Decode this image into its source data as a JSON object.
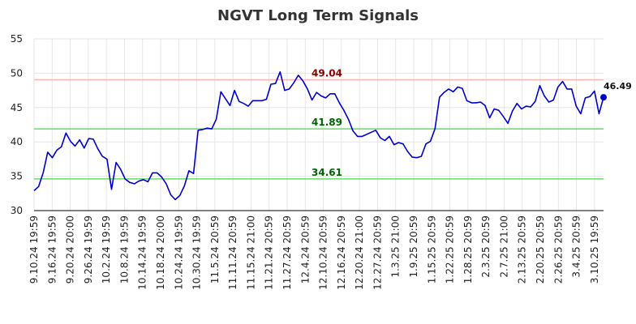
{
  "chart_data": {
    "type": "line",
    "title": "NGVT Long Term Signals",
    "xlabel": "",
    "ylabel": "",
    "ylim": [
      30,
      55
    ],
    "yticks": [
      30,
      35,
      40,
      45,
      50,
      55
    ],
    "grid": true,
    "x_tick_labels": [
      "9.10.24 19:59",
      "9.16.24 19:59",
      "9.20.24 20:00",
      "9.26.24 19:59",
      "10.2.24 19:59",
      "10.8.24 19:59",
      "10.14.24 19:59",
      "10.18.24 20:00",
      "10.24.24 19:59",
      "10.30.24 19:59",
      "11.5.24 20:59",
      "11.11.24 20:59",
      "11.15.24 21:00",
      "11.21.24 20:59",
      "11.27.24 20:59",
      "12.4.24 20:59",
      "12.10.24 20:59",
      "12.16.24 20:59",
      "12.20.24 21:00",
      "12.27.24 20:59",
      "1.3.25 21:00",
      "1.9.25 20:59",
      "1.15.25 20:59",
      "1.22.25 20:59",
      "1.28.25 20:59",
      "2.3.25 20:59",
      "2.7.25 21:00",
      "2.13.25 20:59",
      "2.20.25 20:59",
      "2.26.25 20:59",
      "3.4.25 20:59",
      "3.10.25 19:59"
    ],
    "series": [
      {
        "color": "#0000cc",
        "values": [
          32.9,
          33.5,
          35.5,
          38.5,
          37.7,
          38.8,
          39.3,
          41.3,
          40.1,
          39.4,
          40.3,
          39.1,
          40.5,
          40.4,
          39.0,
          37.9,
          37.5,
          33.1,
          37.0,
          36.0,
          34.6,
          34.1,
          33.9,
          34.3,
          34.5,
          34.2,
          35.5,
          35.5,
          34.9,
          33.9,
          32.3,
          31.6,
          32.2,
          33.6,
          35.8,
          35.4,
          41.7,
          41.8,
          42.0,
          41.9,
          43.3,
          47.3,
          46.3,
          45.3,
          47.5,
          45.9,
          45.6,
          45.2,
          46.0,
          46.0,
          46.0,
          46.2,
          48.4,
          48.5,
          50.2,
          47.5,
          47.7,
          48.6,
          49.7,
          48.9,
          47.7,
          46.1,
          47.2,
          46.7,
          46.4,
          47.0,
          47.0,
          45.7,
          44.6,
          43.3,
          41.6,
          40.8,
          40.8,
          41.1,
          41.4,
          41.7,
          40.6,
          40.2,
          40.8,
          39.6,
          39.9,
          39.7,
          38.6,
          37.8,
          37.7,
          37.9,
          39.7,
          40.1,
          41.9,
          46.5,
          47.2,
          47.7,
          47.3,
          48.0,
          47.8,
          46.0,
          45.7,
          45.7,
          45.8,
          45.3,
          43.5,
          44.8,
          44.6,
          43.7,
          42.7,
          44.5,
          45.6,
          44.8,
          45.2,
          45.1,
          45.9,
          48.2,
          46.7,
          45.8,
          46.1,
          48.0,
          48.8,
          47.7,
          47.7,
          45.2,
          44.1,
          46.4,
          46.6,
          47.4,
          44.1,
          46.49
        ]
      }
    ],
    "levels": [
      {
        "value": 49.04,
        "label": "49.04",
        "line_color": "#ffb3b3",
        "text_color": "#8b0000"
      },
      {
        "value": 41.89,
        "label": "41.89",
        "line_color": "#66dd66",
        "text_color": "#006400"
      },
      {
        "value": 34.61,
        "label": "34.61",
        "line_color": "#66dd66",
        "text_color": "#006400"
      }
    ],
    "last_value_label": "46.49"
  }
}
